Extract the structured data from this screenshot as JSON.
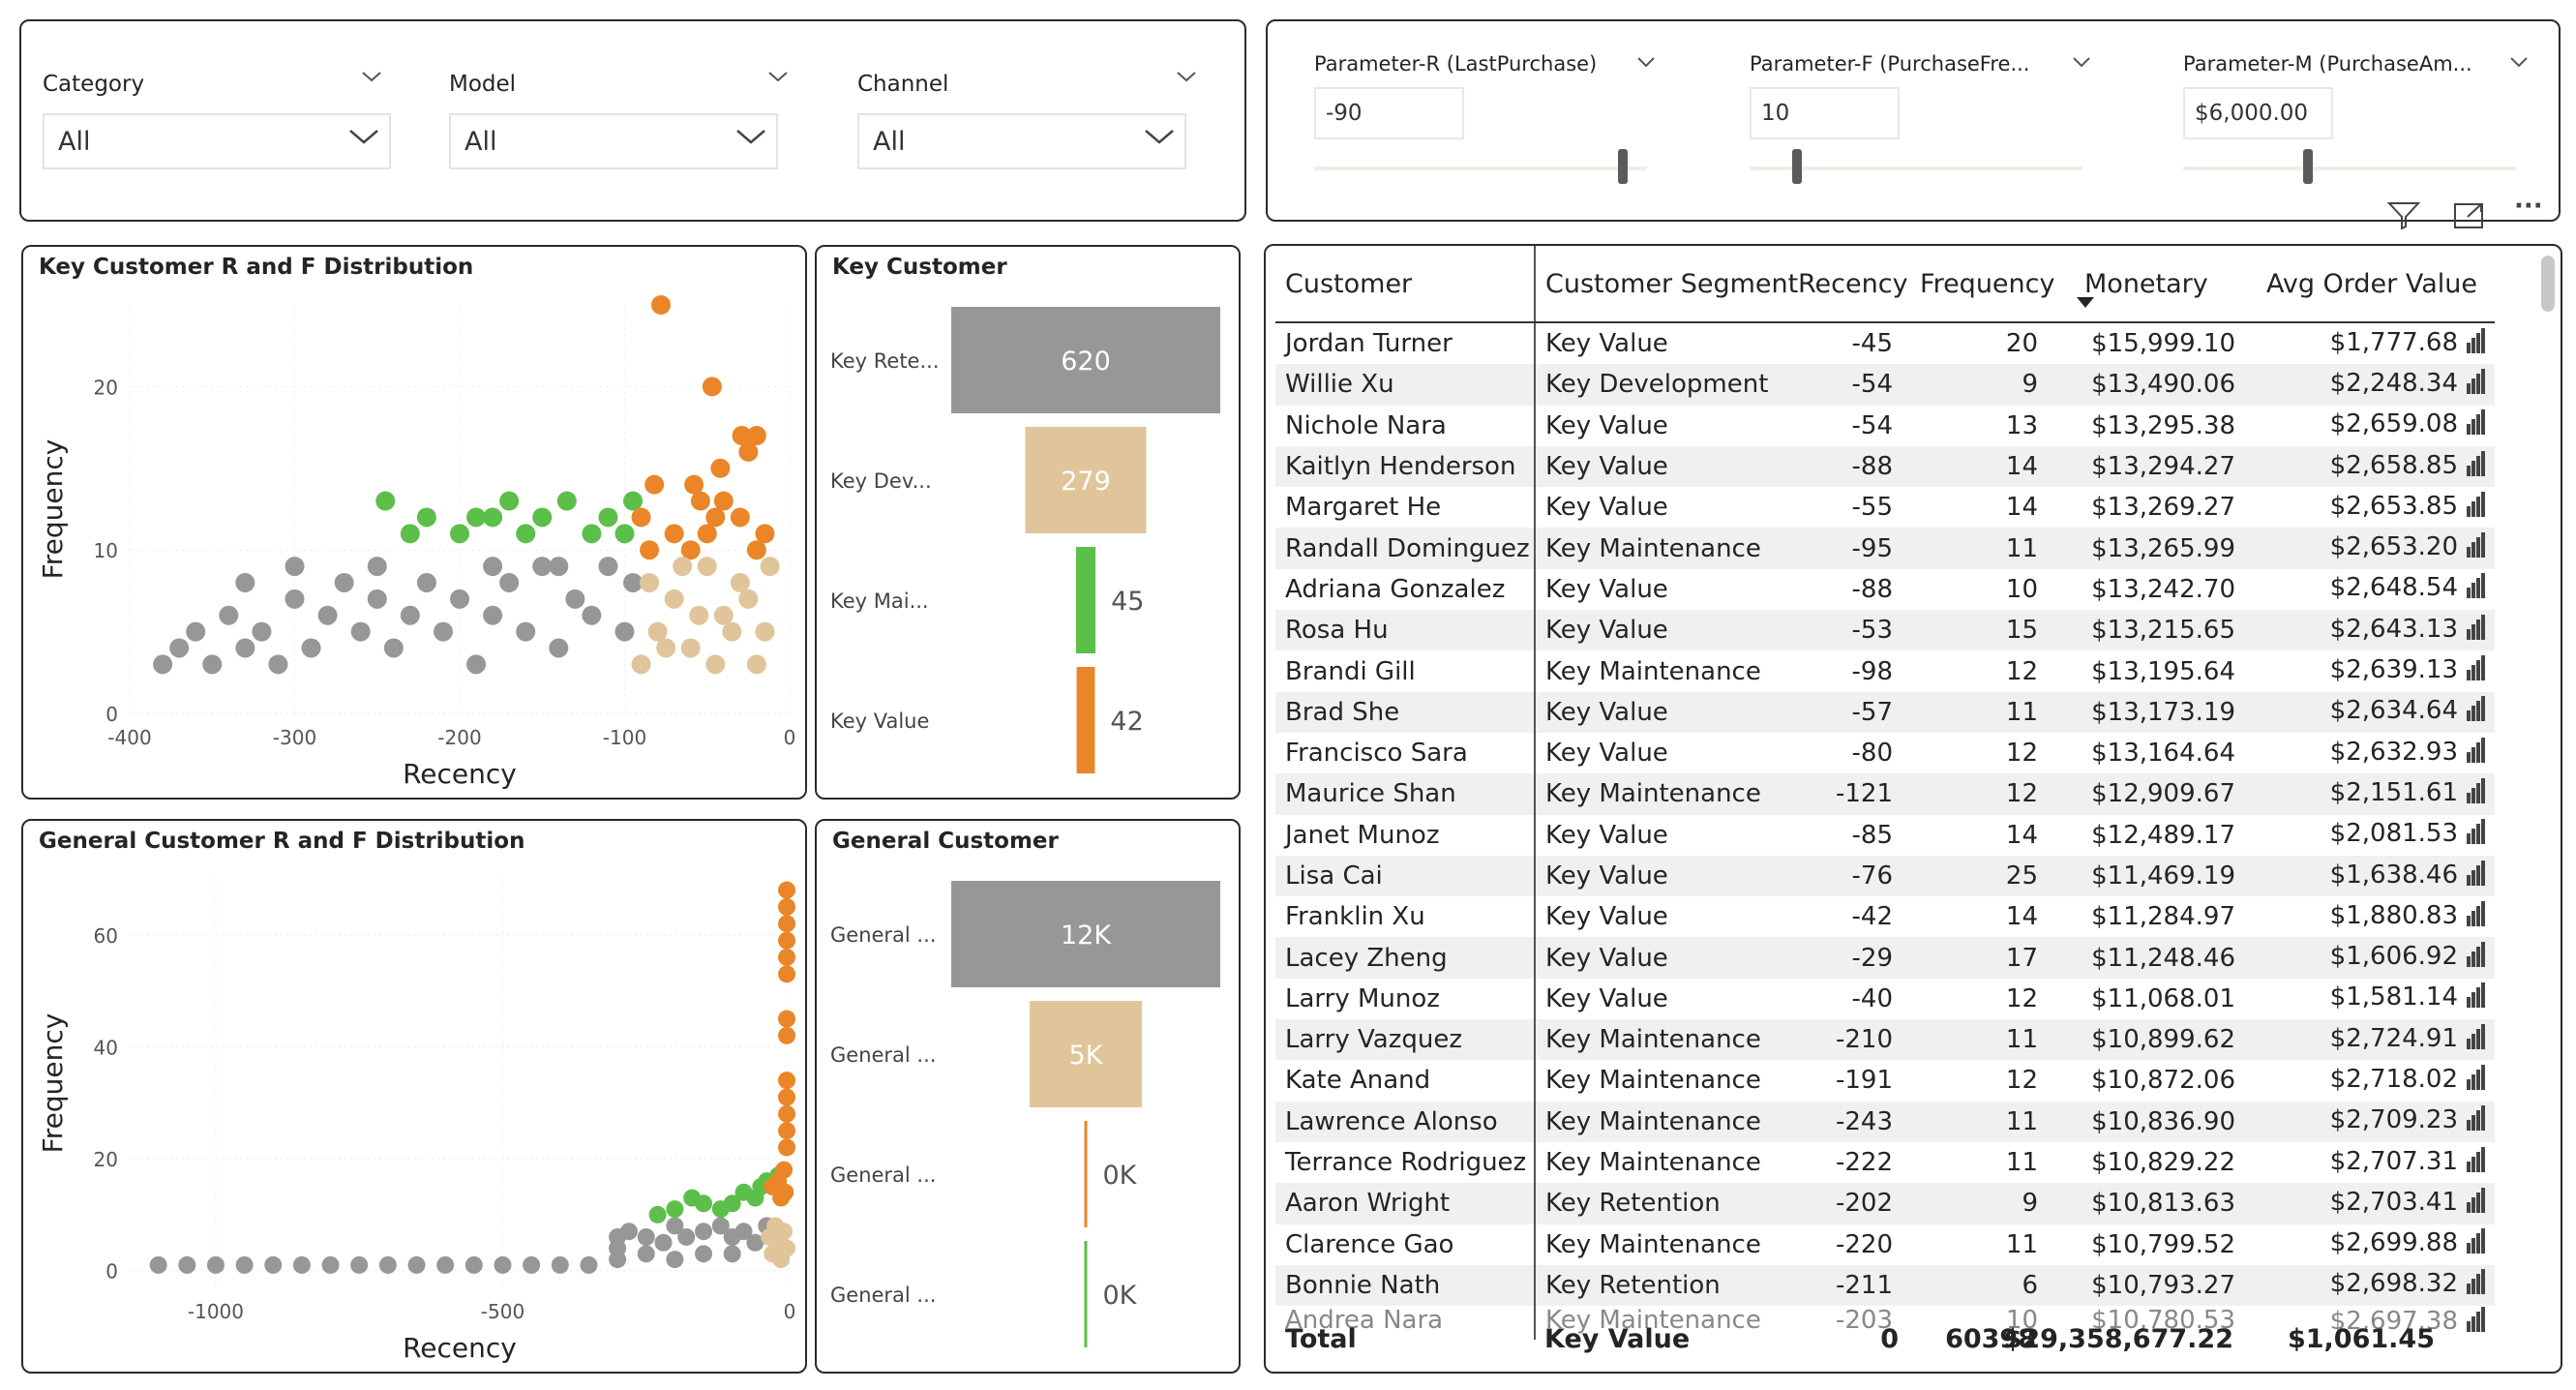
{
  "slicers": [
    {
      "label": "Category",
      "value": "All"
    },
    {
      "label": "Model",
      "value": "All"
    },
    {
      "label": "Channel",
      "value": "All"
    }
  ],
  "parameters": [
    {
      "label": "Parameter-R (LastPurchase)",
      "value": "-90",
      "position": 0.92
    },
    {
      "label": "Parameter-F (PurchaseFre...",
      "value": "10",
      "position": 0.12
    },
    {
      "label": "Parameter-M (PurchaseAm...",
      "value": "$6,000.00",
      "position": 0.35
    }
  ],
  "visual_header": {
    "filter_icon": "filter-icon",
    "focus_icon": "focus-mode-icon",
    "more_icon": "more-options-icon",
    "more_label": "···"
  },
  "colors": {
    "gray": "#979797",
    "green": "#5cbf4a",
    "orange": "#ea8628",
    "tan": "#e0c59a",
    "selection": "#3a3a3a"
  },
  "key_scatter": {
    "title": "Key Customer R and F Distribution",
    "chart_data": {
      "type": "scatter",
      "title": "Key Customer R and F Distribution",
      "xlabel": "Recency",
      "ylabel": "Frequency",
      "xlim": [
        -400,
        0
      ],
      "ylim": [
        0,
        25
      ],
      "xticks": [
        "-400",
        "-300",
        "-200",
        "-100",
        "0"
      ],
      "yticks": [
        "0",
        "10",
        "20"
      ],
      "series": [
        {
          "color": "gray",
          "points": [
            [
              -380,
              3
            ],
            [
              -370,
              4
            ],
            [
              -360,
              5
            ],
            [
              -350,
              3
            ],
            [
              -340,
              6
            ],
            [
              -330,
              4
            ],
            [
              -320,
              5
            ],
            [
              -310,
              3
            ],
            [
              -300,
              7
            ],
            [
              -290,
              4
            ],
            [
              -280,
              6
            ],
            [
              -270,
              8
            ],
            [
              -260,
              5
            ],
            [
              -250,
              7
            ],
            [
              -240,
              4
            ],
            [
              -230,
              6
            ],
            [
              -220,
              8
            ],
            [
              -210,
              5
            ],
            [
              -200,
              7
            ],
            [
              -190,
              3
            ],
            [
              -180,
              6
            ],
            [
              -170,
              8
            ],
            [
              -160,
              5
            ],
            [
              -150,
              9
            ],
            [
              -140,
              4
            ],
            [
              -130,
              7
            ],
            [
              -120,
              6
            ],
            [
              -110,
              9
            ],
            [
              -100,
              5
            ],
            [
              -95,
              8
            ],
            [
              -250,
              9
            ],
            [
              -300,
              9
            ],
            [
              -330,
              8
            ],
            [
              -180,
              9
            ],
            [
              -140,
              9
            ]
          ]
        },
        {
          "color": "green",
          "points": [
            [
              -245,
              13
            ],
            [
              -230,
              11
            ],
            [
              -220,
              12
            ],
            [
              -200,
              11
            ],
            [
              -190,
              12
            ],
            [
              -170,
              13
            ],
            [
              -160,
              11
            ],
            [
              -150,
              12
            ],
            [
              -135,
              13
            ],
            [
              -120,
              11
            ],
            [
              -110,
              12
            ],
            [
              -100,
              11
            ],
            [
              -95,
              13
            ],
            [
              -180,
              12
            ]
          ]
        },
        {
          "color": "orange",
          "points": [
            [
              -78,
              25
            ],
            [
              -47,
              20
            ],
            [
              -20,
              17
            ],
            [
              -25,
              16
            ],
            [
              -42,
              15
            ],
            [
              -58,
              14
            ],
            [
              -40,
              13
            ],
            [
              -82,
              14
            ],
            [
              -90,
              12
            ],
            [
              -70,
              11
            ],
            [
              -50,
              11
            ],
            [
              -30,
              12
            ],
            [
              -15,
              11
            ],
            [
              -85,
              10
            ],
            [
              -60,
              10
            ],
            [
              -20,
              10
            ],
            [
              -45,
              12
            ],
            [
              -29,
              17
            ],
            [
              -54,
              13
            ]
          ]
        },
        {
          "color": "tan",
          "points": [
            [
              -90,
              3
            ],
            [
              -80,
              5
            ],
            [
              -70,
              7
            ],
            [
              -60,
              4
            ],
            [
              -50,
              9
            ],
            [
              -40,
              6
            ],
            [
              -30,
              8
            ],
            [
              -20,
              3
            ],
            [
              -15,
              5
            ],
            [
              -85,
              8
            ],
            [
              -65,
              9
            ],
            [
              -45,
              3
            ],
            [
              -35,
              5
            ],
            [
              -25,
              7
            ],
            [
              -55,
              6
            ],
            [
              -75,
              4
            ],
            [
              -12,
              9
            ]
          ]
        }
      ]
    }
  },
  "key_funnel": {
    "title": "Key Customer",
    "chart_data": {
      "type": "bar",
      "categories": [
        "Key Rete...",
        "Key Dev...",
        "Key Mai...",
        "Key Value"
      ],
      "values": [
        620,
        279,
        45,
        42
      ],
      "labels": [
        "620",
        "279",
        "45",
        "42"
      ],
      "colors": [
        "gray",
        "tan",
        "green",
        "orange"
      ]
    }
  },
  "general_scatter": {
    "title": "General Customer R and F Distribution",
    "chart_data": {
      "type": "scatter",
      "title": "General Customer R and F Distribution",
      "xlabel": "Recency",
      "ylabel": "Frequency",
      "xlim": [
        -1150,
        0
      ],
      "ylim": [
        -3,
        70
      ],
      "xticks": [
        "-1000",
        "-500",
        "0"
      ],
      "yticks": [
        "0",
        "20",
        "40",
        "60"
      ],
      "series": [
        {
          "color": "gray",
          "points": [
            [
              -1100,
              1
            ],
            [
              -1050,
              1
            ],
            [
              -1000,
              1
            ],
            [
              -950,
              1
            ],
            [
              -900,
              1
            ],
            [
              -850,
              1
            ],
            [
              -800,
              1
            ],
            [
              -750,
              1
            ],
            [
              -700,
              1
            ],
            [
              -650,
              1
            ],
            [
              -600,
              1
            ],
            [
              -550,
              1
            ],
            [
              -500,
              1
            ],
            [
              -450,
              1
            ],
            [
              -400,
              1
            ],
            [
              -350,
              1
            ],
            [
              -300,
              2
            ],
            [
              -300,
              4
            ],
            [
              -300,
              6
            ],
            [
              -280,
              7
            ],
            [
              -250,
              6
            ],
            [
              -220,
              5
            ],
            [
              -200,
              8
            ],
            [
              -180,
              6
            ],
            [
              -150,
              7
            ],
            [
              -120,
              8
            ],
            [
              -100,
              6
            ],
            [
              -80,
              7
            ],
            [
              -60,
              5
            ],
            [
              -40,
              8
            ],
            [
              -250,
              3
            ],
            [
              -150,
              3
            ],
            [
              -100,
              3
            ],
            [
              -200,
              2
            ]
          ]
        },
        {
          "color": "green",
          "points": [
            [
              -230,
              10
            ],
            [
              -200,
              11
            ],
            [
              -170,
              13
            ],
            [
              -150,
              12
            ],
            [
              -120,
              11
            ],
            [
              -100,
              12
            ],
            [
              -80,
              14
            ],
            [
              -60,
              13
            ],
            [
              -50,
              15
            ],
            [
              -40,
              16
            ],
            [
              -20,
              17
            ]
          ]
        },
        {
          "color": "orange",
          "points": [
            [
              -5,
              68
            ],
            [
              -5,
              65
            ],
            [
              -5,
              62
            ],
            [
              -5,
              59
            ],
            [
              -5,
              56
            ],
            [
              -5,
              53
            ],
            [
              -5,
              45
            ],
            [
              -5,
              42
            ],
            [
              -5,
              34
            ],
            [
              -5,
              31
            ],
            [
              -5,
              28
            ],
            [
              -5,
              25
            ],
            [
              -5,
              22
            ],
            [
              -10,
              18
            ],
            [
              -20,
              16
            ],
            [
              -30,
              15
            ],
            [
              -8,
              14
            ],
            [
              -15,
              13
            ]
          ]
        },
        {
          "color": "tan",
          "points": [
            [
              -30,
              3
            ],
            [
              -20,
              5
            ],
            [
              -10,
              7
            ],
            [
              -25,
              8
            ],
            [
              -15,
              2
            ],
            [
              -5,
              4
            ],
            [
              -35,
              6
            ]
          ]
        }
      ]
    }
  },
  "general_funnel": {
    "title": "General Customer",
    "chart_data": {
      "type": "bar",
      "categories": [
        "General ...",
        "General ...",
        "General ...",
        "General ..."
      ],
      "values": [
        12000,
        5000,
        0,
        0
      ],
      "labels": [
        "12K",
        "5K",
        "0K",
        "0K"
      ],
      "colors": [
        "gray",
        "tan",
        "orange",
        "green"
      ]
    }
  },
  "table": {
    "columns": [
      "Customer",
      "Customer Segment",
      "Recency",
      "Frequency",
      "Monetary",
      "Avg Order Value"
    ],
    "sorted_column": "Monetary",
    "rows": [
      [
        "Jordan Turner",
        "Key Value",
        "-45",
        "20",
        "$15,999.10",
        "$1,777.68"
      ],
      [
        "Willie Xu",
        "Key Development",
        "-54",
        "9",
        "$13,490.06",
        "$2,248.34"
      ],
      [
        "Nichole Nara",
        "Key Value",
        "-54",
        "13",
        "$13,295.38",
        "$2,659.08"
      ],
      [
        "Kaitlyn Henderson",
        "Key Value",
        "-88",
        "14",
        "$13,294.27",
        "$2,658.85"
      ],
      [
        "Margaret He",
        "Key Value",
        "-55",
        "14",
        "$13,269.27",
        "$2,653.85"
      ],
      [
        "Randall Dominguez",
        "Key Maintenance",
        "-95",
        "11",
        "$13,265.99",
        "$2,653.20"
      ],
      [
        "Adriana Gonzalez",
        "Key Value",
        "-88",
        "10",
        "$13,242.70",
        "$2,648.54"
      ],
      [
        "Rosa Hu",
        "Key Value",
        "-53",
        "15",
        "$13,215.65",
        "$2,643.13"
      ],
      [
        "Brandi Gill",
        "Key Maintenance",
        "-98",
        "12",
        "$13,195.64",
        "$2,639.13"
      ],
      [
        "Brad She",
        "Key Value",
        "-57",
        "11",
        "$13,173.19",
        "$2,634.64"
      ],
      [
        "Francisco Sara",
        "Key Value",
        "-80",
        "12",
        "$13,164.64",
        "$2,632.93"
      ],
      [
        "Maurice Shan",
        "Key Maintenance",
        "-121",
        "12",
        "$12,909.67",
        "$2,151.61"
      ],
      [
        "Janet Munoz",
        "Key Value",
        "-85",
        "14",
        "$12,489.17",
        "$2,081.53"
      ],
      [
        "Lisa Cai",
        "Key Value",
        "-76",
        "25",
        "$11,469.19",
        "$1,638.46"
      ],
      [
        "Franklin Xu",
        "Key Value",
        "-42",
        "14",
        "$11,284.97",
        "$1,880.83"
      ],
      [
        "Lacey Zheng",
        "Key Value",
        "-29",
        "17",
        "$11,248.46",
        "$1,606.92"
      ],
      [
        "Larry Munoz",
        "Key Value",
        "-40",
        "12",
        "$11,068.01",
        "$1,581.14"
      ],
      [
        "Larry Vazquez",
        "Key Maintenance",
        "-210",
        "11",
        "$10,899.62",
        "$2,724.91"
      ],
      [
        "Kate Anand",
        "Key Maintenance",
        "-191",
        "12",
        "$10,872.06",
        "$2,718.02"
      ],
      [
        "Lawrence Alonso",
        "Key Maintenance",
        "-243",
        "11",
        "$10,836.90",
        "$2,709.23"
      ],
      [
        "Terrance Rodriguez",
        "Key Maintenance",
        "-222",
        "11",
        "$10,829.22",
        "$2,707.31"
      ],
      [
        "Aaron Wright",
        "Key Retention",
        "-202",
        "9",
        "$10,813.63",
        "$2,703.41"
      ],
      [
        "Clarence Gao",
        "Key Maintenance",
        "-220",
        "11",
        "$10,799.52",
        "$2,699.88"
      ],
      [
        "Bonnie Nath",
        "Key Retention",
        "-211",
        "6",
        "$10,793.27",
        "$2,698.32"
      ],
      [
        "Andrea Nara",
        "Key Maintenance",
        "-203",
        "10",
        "$10,780.53",
        "$2,697.38"
      ]
    ],
    "total": {
      "label": "Total",
      "segment": "Key Value",
      "recency": "0",
      "frequency": "60398",
      "monetary": "$29,358,677.22",
      "aov": "$1,061.45"
    },
    "row_icon": "bar-chart-icon"
  }
}
